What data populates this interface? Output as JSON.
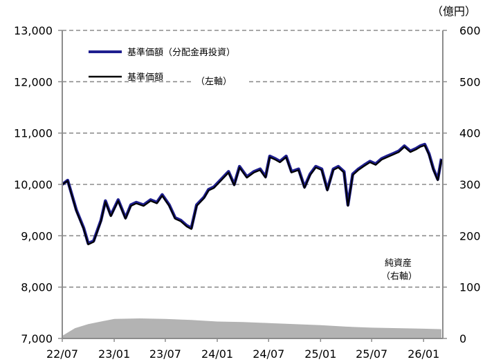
{
  "chart_data": {
    "type": "line",
    "x_ticks": [
      "22/07",
      "23/01",
      "23/07",
      "24/01",
      "24/07",
      "25/01",
      "25/07",
      "26/01"
    ],
    "y_left": {
      "ticks": [
        "13,000",
        "12,000",
        "11,000",
        "10,000",
        "9,000",
        "8,000",
        "7,000"
      ],
      "ylim": [
        7000,
        13000
      ]
    },
    "y_right": {
      "unit": "（億円）",
      "ticks": [
        "600",
        "500",
        "400",
        "300",
        "200",
        "100",
        "0"
      ],
      "ylim": [
        0,
        600
      ]
    },
    "legend": [
      {
        "label": "基準価額（分配金再投資）",
        "color": "#1f1f8f"
      },
      {
        "label": "基準価額",
        "color": "#000000"
      }
    ],
    "axis_note_left": "（左軸）",
    "net_assets_label": [
      "純資産",
      "（右軸）"
    ],
    "grid": true,
    "series": [
      {
        "name": "基準価額（分配金再投資）",
        "axis": "left",
        "color": "#1f1f8f",
        "x": [
          "2022-07-01",
          "2022-07-20",
          "2022-08-20",
          "2022-09-15",
          "2022-10-01",
          "2022-10-20",
          "2022-11-15",
          "2022-12-01",
          "2022-12-20",
          "2023-01-15",
          "2023-02-10",
          "2023-03-01",
          "2023-03-20",
          "2023-04-15",
          "2023-05-10",
          "2023-06-01",
          "2023-06-20",
          "2023-07-15",
          "2023-08-05",
          "2023-08-25",
          "2023-09-15",
          "2023-10-01",
          "2023-10-20",
          "2023-11-15",
          "2023-12-01",
          "2023-12-20",
          "2024-01-15",
          "2024-02-10",
          "2024-03-01",
          "2024-03-20",
          "2024-04-15",
          "2024-05-10",
          "2024-06-01",
          "2024-06-20",
          "2024-07-05",
          "2024-07-25",
          "2024-08-10",
          "2024-09-01",
          "2024-09-20",
          "2024-10-15",
          "2024-11-05",
          "2024-11-25",
          "2024-12-15",
          "2025-01-05",
          "2025-01-25",
          "2025-02-15",
          "2025-03-05",
          "2025-03-25",
          "2025-04-08",
          "2025-04-25",
          "2025-05-15",
          "2025-06-05",
          "2025-06-25",
          "2025-07-15",
          "2025-08-05",
          "2025-08-25",
          "2025-09-15",
          "2025-10-05",
          "2025-10-25",
          "2025-11-15",
          "2025-12-05",
          "2025-12-20",
          "2026-01-05",
          "2026-01-20",
          "2026-02-05",
          "2026-02-20",
          "2026-03-05"
        ],
        "y": [
          10000,
          10080,
          9500,
          9150,
          8850,
          8900,
          9300,
          9680,
          9400,
          9700,
          9350,
          9600,
          9650,
          9600,
          9700,
          9650,
          9800,
          9600,
          9350,
          9300,
          9200,
          9150,
          9600,
          9750,
          9900,
          9950,
          10100,
          10250,
          10000,
          10350,
          10150,
          10250,
          10300,
          10150,
          10550,
          10500,
          10450,
          10550,
          10250,
          10300,
          9950,
          10200,
          10350,
          10300,
          9900,
          10300,
          10350,
          10250,
          9600,
          10200,
          10300,
          10380,
          10450,
          10400,
          10500,
          10550,
          10600,
          10650,
          10750,
          10650,
          10700,
          10750,
          10780,
          10600,
          10300,
          10100,
          10500
        ]
      },
      {
        "name": "基準価額",
        "axis": "left",
        "color": "#000000",
        "x": [
          "2022-07-01",
          "2022-07-20",
          "2022-08-20",
          "2022-09-15",
          "2022-10-01",
          "2022-10-20",
          "2022-11-15",
          "2022-12-01",
          "2022-12-20",
          "2023-01-15",
          "2023-02-10",
          "2023-03-01",
          "2023-03-20",
          "2023-04-15",
          "2023-05-10",
          "2023-06-01",
          "2023-06-20",
          "2023-07-15",
          "2023-08-05",
          "2023-08-25",
          "2023-09-15",
          "2023-10-01",
          "2023-10-20",
          "2023-11-15",
          "2023-12-01",
          "2023-12-20",
          "2024-01-15",
          "2024-02-10",
          "2024-03-01",
          "2024-03-20",
          "2024-04-15",
          "2024-05-10",
          "2024-06-01",
          "2024-06-20",
          "2024-07-05",
          "2024-07-25",
          "2024-08-10",
          "2024-09-01",
          "2024-09-20",
          "2024-10-15",
          "2024-11-05",
          "2024-11-25",
          "2024-12-15",
          "2025-01-05",
          "2025-01-25",
          "2025-02-15",
          "2025-03-05",
          "2025-03-25",
          "2025-04-08",
          "2025-04-25",
          "2025-05-15",
          "2025-06-05",
          "2025-06-25",
          "2025-07-15",
          "2025-08-05",
          "2025-08-25",
          "2025-09-15",
          "2025-10-05",
          "2025-10-25",
          "2025-11-15",
          "2025-12-05",
          "2025-12-20",
          "2026-01-05",
          "2026-01-20",
          "2026-02-05",
          "2026-02-20",
          "2026-03-05"
        ],
        "y": [
          10000,
          10070,
          9480,
          9130,
          8830,
          8880,
          9280,
          9660,
          9380,
          9680,
          9330,
          9580,
          9630,
          9580,
          9680,
          9630,
          9780,
          9580,
          9330,
          9280,
          9180,
          9130,
          9580,
          9730,
          9880,
          9930,
          10080,
          10230,
          9980,
          10330,
          10130,
          10230,
          10280,
          10130,
          10530,
          10480,
          10430,
          10530,
          10230,
          10280,
          9930,
          10180,
          10330,
          10280,
          9880,
          10280,
          10330,
          10230,
          9580,
          10180,
          10280,
          10360,
          10430,
          10380,
          10480,
          10530,
          10580,
          10630,
          10730,
          10630,
          10680,
          10730,
          10760,
          10580,
          10280,
          10080,
          10480
        ]
      },
      {
        "name": "純資産",
        "axis": "right",
        "type": "area",
        "color": "#b3b3b3",
        "x": [
          "2022-07-01",
          "2022-08-15",
          "2022-10-01",
          "2022-11-15",
          "2023-01-01",
          "2023-04-01",
          "2023-07-01",
          "2023-10-01",
          "2024-01-01",
          "2024-04-01",
          "2024-07-01",
          "2024-10-01",
          "2025-01-01",
          "2025-04-01",
          "2025-07-01",
          "2025-10-01",
          "2026-01-01",
          "2026-03-05"
        ],
        "y": [
          5,
          20,
          28,
          33,
          38,
          39,
          38,
          36,
          33,
          32,
          30,
          28,
          26,
          23,
          21,
          20,
          19,
          18
        ]
      }
    ]
  }
}
